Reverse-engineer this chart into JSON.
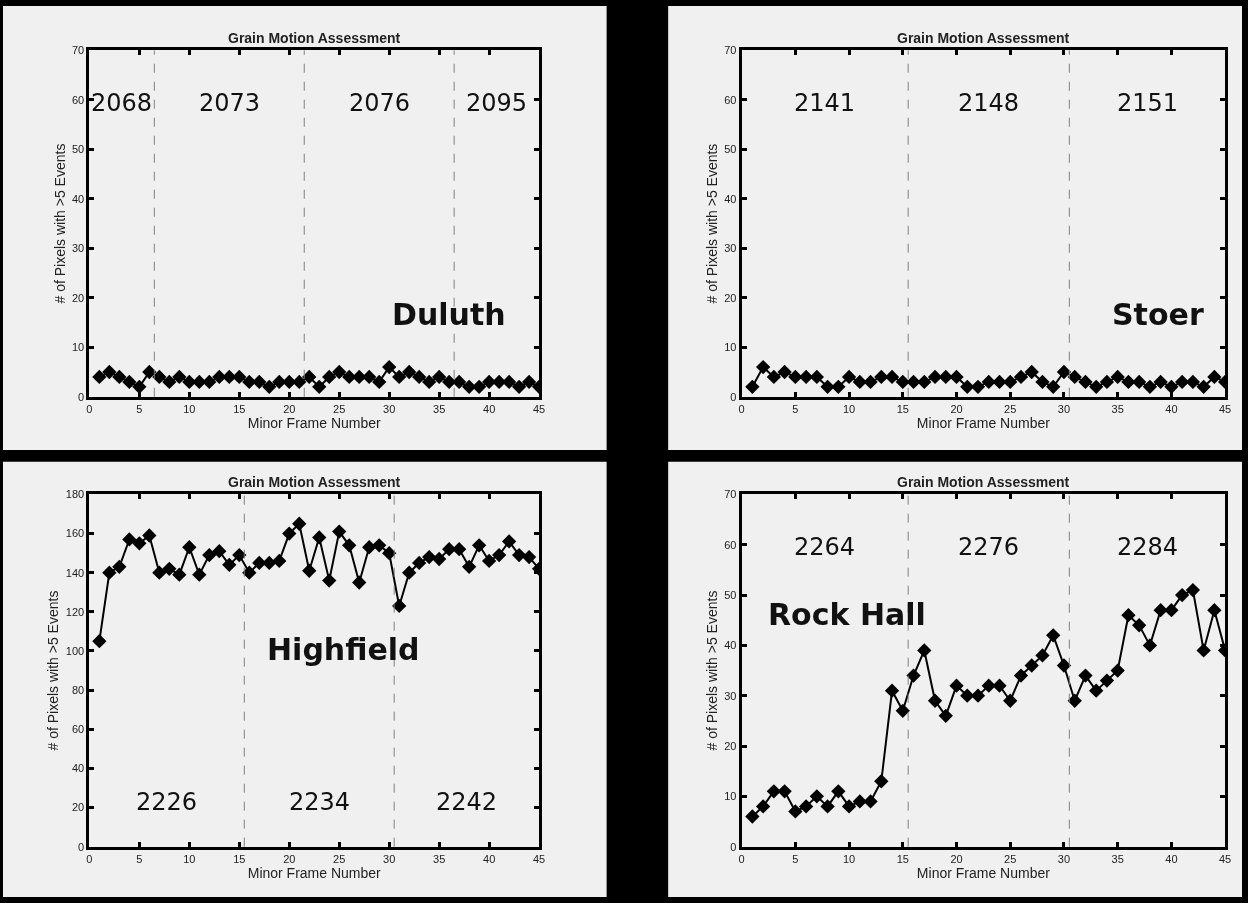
{
  "chart_data": [
    {
      "type": "line",
      "title": "Grain Motion Assessment",
      "xlabel": "Minor Frame Number",
      "ylabel": "# of Pixels with >5 Events",
      "x": [
        1,
        2,
        3,
        4,
        5,
        6,
        7,
        8,
        9,
        10,
        11,
        12,
        13,
        14,
        15,
        16,
        17,
        18,
        19,
        20,
        21,
        22,
        23,
        24,
        25,
        26,
        27,
        28,
        29,
        30,
        31,
        32,
        33,
        34,
        35,
        36,
        37,
        38,
        39,
        40,
        41,
        42,
        43,
        44,
        45
      ],
      "series": [
        {
          "color": "#000000",
          "values": [
            4,
            5,
            4,
            3,
            2,
            5,
            4,
            3,
            4,
            3,
            3,
            3,
            4,
            4,
            4,
            3,
            3,
            2,
            3,
            3,
            3,
            4,
            2,
            4,
            5,
            4,
            4,
            4,
            3,
            6,
            4,
            5,
            4,
            3,
            4,
            3,
            3,
            2,
            2,
            3,
            3,
            3,
            2,
            3,
            2
          ]
        }
      ],
      "xlim": [
        0,
        45
      ],
      "xticks": [
        0,
        5,
        10,
        15,
        20,
        25,
        30,
        35,
        40,
        45
      ],
      "ylim": [
        0,
        70
      ],
      "yticks": [
        0,
        10,
        20,
        30,
        40,
        50,
        60,
        70
      ],
      "grid": false,
      "marker": "diamond",
      "line_style": "solid",
      "ref_lines": [
        {
          "axis": "x",
          "value": 6.5,
          "line_style": "dashed",
          "color": "#808080"
        },
        {
          "axis": "x",
          "value": 21.5,
          "line_style": "dashed",
          "color": "#808080"
        },
        {
          "axis": "x",
          "value": 36.5,
          "line_style": "dashed",
          "color": "#808080"
        }
      ],
      "annotations": [
        "2068",
        "2073",
        "2076",
        "2095",
        "Duluth"
      ]
    },
    {
      "type": "line",
      "title": "Grain Motion Assessment",
      "xlabel": "Minor Frame Number",
      "ylabel": "# of Pixels with >5 Events",
      "x": [
        1,
        2,
        3,
        4,
        5,
        6,
        7,
        8,
        9,
        10,
        11,
        12,
        13,
        14,
        15,
        16,
        17,
        18,
        19,
        20,
        21,
        22,
        23,
        24,
        25,
        26,
        27,
        28,
        29,
        30,
        31,
        32,
        33,
        34,
        35,
        36,
        37,
        38,
        39,
        40,
        41,
        42,
        43,
        44,
        45
      ],
      "series": [
        {
          "color": "#000000",
          "values": [
            2,
            6,
            4,
            5,
            4,
            4,
            4,
            2,
            2,
            4,
            3,
            3,
            4,
            4,
            3,
            3,
            3,
            4,
            4,
            4,
            2,
            2,
            3,
            3,
            3,
            4,
            5,
            3,
            2,
            5,
            4,
            3,
            2,
            3,
            4,
            3,
            3,
            2,
            3,
            2,
            3,
            3,
            2,
            4,
            3
          ]
        }
      ],
      "xlim": [
        0,
        45
      ],
      "xticks": [
        0,
        5,
        10,
        15,
        20,
        25,
        30,
        35,
        40,
        45
      ],
      "ylim": [
        0,
        70
      ],
      "yticks": [
        0,
        10,
        20,
        30,
        40,
        50,
        60,
        70
      ],
      "grid": false,
      "marker": "diamond",
      "line_style": "solid",
      "ref_lines": [
        {
          "axis": "x",
          "value": 15.5,
          "line_style": "dashed",
          "color": "#808080"
        },
        {
          "axis": "x",
          "value": 30.5,
          "line_style": "dashed",
          "color": "#808080"
        }
      ],
      "annotations": [
        "2141",
        "2148",
        "2151",
        "Stoer"
      ]
    },
    {
      "type": "line",
      "title": "Grain Motion Assessment",
      "xlabel": "Minor Frame Number",
      "ylabel": "# of Pixels with >5 Events",
      "x": [
        1,
        2,
        3,
        4,
        5,
        6,
        7,
        8,
        9,
        10,
        11,
        12,
        13,
        14,
        15,
        16,
        17,
        18,
        19,
        20,
        21,
        22,
        23,
        24,
        25,
        26,
        27,
        28,
        29,
        30,
        31,
        32,
        33,
        34,
        35,
        36,
        37,
        38,
        39,
        40,
        41,
        42,
        43,
        44,
        45
      ],
      "series": [
        {
          "color": "#000000",
          "values": [
            105,
            140,
            143,
            157,
            155,
            159,
            140,
            142,
            139,
            153,
            139,
            149,
            151,
            144,
            149,
            140,
            145,
            145,
            146,
            160,
            165,
            141,
            158,
            136,
            161,
            154,
            135,
            153,
            154,
            150,
            123,
            140,
            145,
            148,
            147,
            152,
            152,
            143,
            154,
            146,
            149,
            156,
            149,
            148,
            142
          ]
        }
      ],
      "xlim": [
        0,
        45
      ],
      "xticks": [
        0,
        5,
        10,
        15,
        20,
        25,
        30,
        35,
        40,
        45
      ],
      "ylim": [
        0,
        180
      ],
      "yticks": [
        0,
        20,
        40,
        60,
        80,
        100,
        120,
        140,
        160,
        180
      ],
      "grid": false,
      "marker": "diamond",
      "line_style": "solid",
      "ref_lines": [
        {
          "axis": "x",
          "value": 15.5,
          "line_style": "dashed",
          "color": "#808080"
        },
        {
          "axis": "x",
          "value": 30.5,
          "line_style": "dashed",
          "color": "#808080"
        }
      ],
      "annotations": [
        "2226",
        "2234",
        "2242",
        "Highfield"
      ]
    },
    {
      "type": "line",
      "title": "Grain Motion Assessment",
      "xlabel": "Minor Frame Number",
      "ylabel": "# of Pixels with >5 Events",
      "x": [
        1,
        2,
        3,
        4,
        5,
        6,
        7,
        8,
        9,
        10,
        11,
        12,
        13,
        14,
        15,
        16,
        17,
        18,
        19,
        20,
        21,
        22,
        23,
        24,
        25,
        26,
        27,
        28,
        29,
        30,
        31,
        32,
        33,
        34,
        35,
        36,
        37,
        38,
        39,
        40,
        41,
        42,
        43,
        44,
        45
      ],
      "series": [
        {
          "color": "#000000",
          "values": [
            6,
            8,
            11,
            11,
            7,
            8,
            10,
            8,
            11,
            8,
            9,
            9,
            13,
            31,
            27,
            34,
            39,
            29,
            26,
            32,
            30,
            30,
            32,
            32,
            29,
            34,
            36,
            38,
            42,
            36,
            29,
            34,
            31,
            33,
            35,
            46,
            44,
            40,
            47,
            47,
            50,
            51,
            39,
            47,
            39
          ]
        }
      ],
      "xlim": [
        0,
        45
      ],
      "xticks": [
        0,
        5,
        10,
        15,
        20,
        25,
        30,
        35,
        40,
        45
      ],
      "ylim": [
        0,
        70
      ],
      "yticks": [
        0,
        10,
        20,
        30,
        40,
        50,
        60,
        70
      ],
      "grid": false,
      "marker": "diamond",
      "line_style": "solid",
      "ref_lines": [
        {
          "axis": "x",
          "value": 15.5,
          "line_style": "dashed",
          "color": "#808080"
        },
        {
          "axis": "x",
          "value": 30.5,
          "line_style": "dashed",
          "color": "#808080"
        }
      ],
      "annotations": [
        "2264",
        "2276",
        "2284",
        "Rock Hall"
      ]
    }
  ]
}
